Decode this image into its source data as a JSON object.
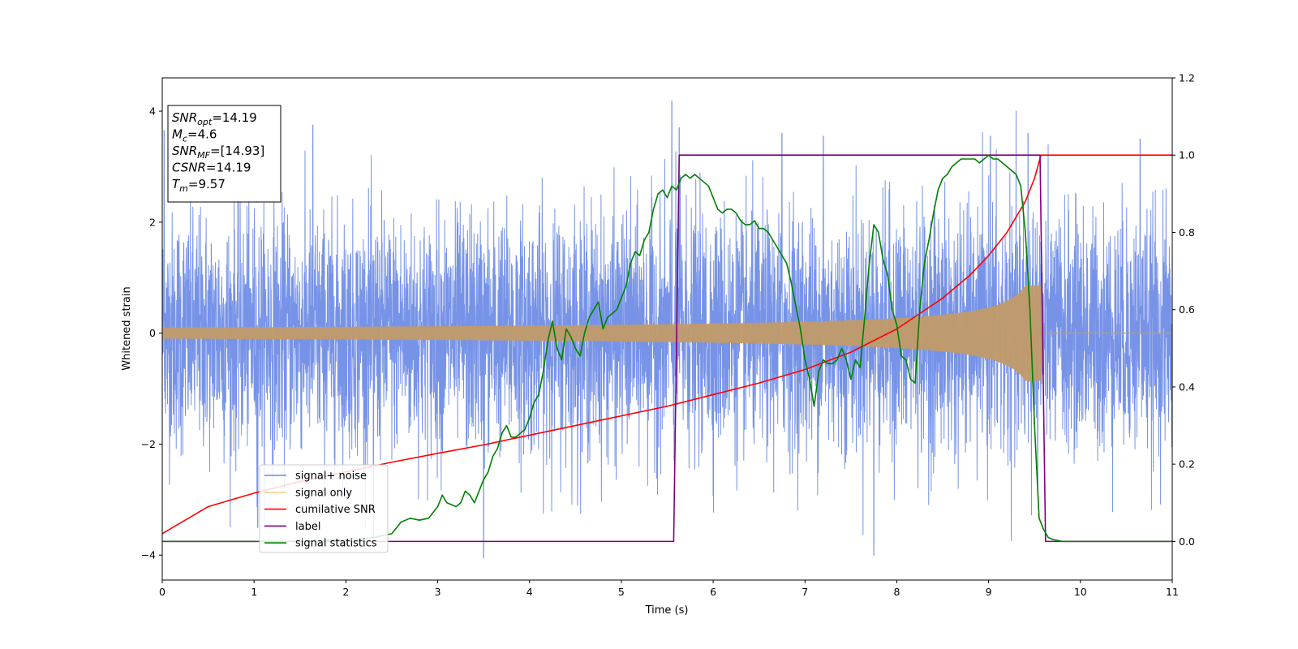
{
  "chart_data": {
    "type": "line",
    "xlabel": "Time (s)",
    "ylabel": "Whitened strain",
    "xlim": [
      0,
      11
    ],
    "ylim_left": [
      -4.45,
      4.6
    ],
    "ylim_right": [
      -0.1,
      1.2
    ],
    "x_ticks": [
      0,
      1,
      2,
      3,
      4,
      5,
      6,
      7,
      8,
      9,
      10,
      11
    ],
    "y_ticks_left": [
      -4,
      -2,
      0,
      2,
      4
    ],
    "y_ticks_right": [
      0.0,
      0.2,
      0.4,
      0.6,
      0.8,
      1.0,
      1.2
    ],
    "x_tick_labels": [
      "0",
      "1",
      "2",
      "3",
      "4",
      "5",
      "6",
      "7",
      "8",
      "9",
      "10",
      "11"
    ],
    "y_tick_labels_left": [
      "−4",
      "−2",
      "0",
      "2",
      "4"
    ],
    "y_tick_labels_right": [
      "0.0",
      "0.2",
      "0.4",
      "0.6",
      "0.8",
      "1.0",
      "1.2"
    ],
    "legend_placement": "lower-left",
    "grid": false,
    "info_box": [
      {
        "var": "SNR",
        "sub": "opt",
        "value": "=14.19"
      },
      {
        "var": "M",
        "sub": "c",
        "value": "=4.6"
      },
      {
        "var": "SNR",
        "sub": "MF",
        "value": "=[14.93]"
      },
      {
        "var": "CSNR",
        "sub": "",
        "value": "=14.19"
      },
      {
        "var": "T",
        "sub": "m",
        "value": "=9.57"
      }
    ],
    "series": [
      {
        "name": "signal+ noise",
        "axis": "left",
        "color": "#6b8ae6",
        "description_values": {
          "noise_sigma": 1.0,
          "t_start": 0,
          "t_end": 11
        },
        "peaks": [
          [
            0.02,
            3.65
          ],
          [
            1.64,
            3.75
          ],
          [
            5.55,
            4.18
          ],
          [
            5.63,
            3.7
          ],
          [
            6.75,
            3.6
          ],
          [
            7.2,
            3.55
          ],
          [
            9.02,
            3.55
          ],
          [
            9.43,
            3.6
          ],
          [
            10.65,
            3.5
          ],
          [
            3.5,
            -4.05
          ],
          [
            7.75,
            -4.0
          ],
          [
            1.04,
            -3.5
          ],
          [
            2.3,
            -3.8
          ]
        ]
      },
      {
        "name": "signal only",
        "axis": "left",
        "color": "#c09a6b",
        "description_values": {
          "t_merge": 9.57,
          "envelope_start": 0.1,
          "envelope_peak": 1.2
        }
      },
      {
        "name": "cumilative SNR",
        "axis": "right",
        "color": "#ff0000",
        "x": [
          0,
          0.5,
          1,
          1.5,
          2,
          2.5,
          3,
          3.5,
          4,
          4.5,
          5,
          5.5,
          6,
          6.5,
          7,
          7.5,
          8,
          8.5,
          8.8,
          9,
          9.2,
          9.4,
          9.5,
          9.57,
          11
        ],
        "values": [
          0.02,
          0.09,
          0.125,
          0.155,
          0.18,
          0.205,
          0.228,
          0.25,
          0.275,
          0.3,
          0.325,
          0.35,
          0.38,
          0.41,
          0.445,
          0.49,
          0.55,
          0.63,
          0.69,
          0.74,
          0.8,
          0.88,
          0.94,
          1.0,
          1.0
        ]
      },
      {
        "name": "label",
        "axis": "right",
        "color": "#800080",
        "x": [
          0,
          5.57,
          5.63,
          9.56,
          9.62,
          11
        ],
        "values": [
          0,
          0,
          1,
          1,
          0,
          0
        ]
      },
      {
        "name": "signal statistics",
        "axis": "right",
        "color": "#008000",
        "x": [
          0,
          0.5,
          1,
          1.5,
          2,
          2.3,
          2.5,
          2.6,
          2.7,
          2.8,
          2.9,
          3.0,
          3.05,
          3.1,
          3.2,
          3.25,
          3.3,
          3.35,
          3.4,
          3.5,
          3.55,
          3.6,
          3.65,
          3.7,
          3.75,
          3.8,
          3.85,
          3.9,
          3.95,
          4.0,
          4.05,
          4.1,
          4.15,
          4.2,
          4.25,
          4.3,
          4.35,
          4.4,
          4.45,
          4.5,
          4.55,
          4.6,
          4.65,
          4.7,
          4.75,
          4.8,
          4.85,
          4.9,
          4.95,
          5.0,
          5.05,
          5.1,
          5.15,
          5.2,
          5.25,
          5.3,
          5.35,
          5.4,
          5.45,
          5.5,
          5.55,
          5.6,
          5.65,
          5.7,
          5.75,
          5.8,
          5.85,
          5.9,
          5.95,
          6.0,
          6.05,
          6.1,
          6.15,
          6.2,
          6.25,
          6.3,
          6.35,
          6.4,
          6.45,
          6.5,
          6.55,
          6.6,
          6.65,
          6.7,
          6.75,
          6.8,
          6.85,
          6.9,
          6.95,
          7.0,
          7.05,
          7.1,
          7.15,
          7.2,
          7.25,
          7.3,
          7.35,
          7.4,
          7.45,
          7.5,
          7.55,
          7.6,
          7.65,
          7.7,
          7.75,
          7.8,
          7.85,
          7.9,
          7.95,
          8.0,
          8.05,
          8.1,
          8.15,
          8.2,
          8.25,
          8.3,
          8.35,
          8.4,
          8.45,
          8.5,
          8.55,
          8.6,
          8.65,
          8.7,
          8.75,
          8.8,
          8.85,
          8.9,
          8.95,
          9.0,
          9.05,
          9.1,
          9.15,
          9.2,
          9.25,
          9.3,
          9.35,
          9.4,
          9.45,
          9.5,
          9.55,
          9.6,
          9.65,
          9.7,
          9.8,
          10,
          11
        ],
        "values": [
          0.0,
          0.0,
          0.0,
          0.0,
          0.005,
          0.01,
          0.02,
          0.05,
          0.06,
          0.055,
          0.06,
          0.09,
          0.12,
          0.1,
          0.09,
          0.1,
          0.13,
          0.12,
          0.1,
          0.16,
          0.18,
          0.22,
          0.24,
          0.28,
          0.3,
          0.27,
          0.27,
          0.28,
          0.29,
          0.32,
          0.36,
          0.38,
          0.44,
          0.52,
          0.57,
          0.5,
          0.47,
          0.55,
          0.53,
          0.5,
          0.48,
          0.54,
          0.58,
          0.6,
          0.62,
          0.55,
          0.58,
          0.59,
          0.6,
          0.63,
          0.66,
          0.72,
          0.75,
          0.74,
          0.78,
          0.8,
          0.86,
          0.9,
          0.91,
          0.89,
          0.92,
          0.91,
          0.94,
          0.95,
          0.94,
          0.95,
          0.94,
          0.93,
          0.92,
          0.89,
          0.86,
          0.85,
          0.86,
          0.86,
          0.85,
          0.83,
          0.82,
          0.82,
          0.83,
          0.81,
          0.81,
          0.8,
          0.78,
          0.76,
          0.74,
          0.72,
          0.67,
          0.61,
          0.55,
          0.47,
          0.42,
          0.35,
          0.44,
          0.47,
          0.46,
          0.46,
          0.47,
          0.5,
          0.47,
          0.42,
          0.47,
          0.45,
          0.58,
          0.72,
          0.82,
          0.8,
          0.73,
          0.69,
          0.6,
          0.56,
          0.48,
          0.47,
          0.42,
          0.41,
          0.6,
          0.72,
          0.78,
          0.85,
          0.91,
          0.94,
          0.95,
          0.97,
          0.98,
          0.99,
          0.99,
          0.99,
          0.99,
          0.98,
          0.99,
          1.0,
          0.99,
          0.99,
          0.98,
          0.97,
          0.96,
          0.95,
          0.92,
          0.8,
          0.6,
          0.3,
          0.06,
          0.03,
          0.01,
          0.005,
          0.0,
          0.0,
          0.0
        ]
      }
    ]
  }
}
